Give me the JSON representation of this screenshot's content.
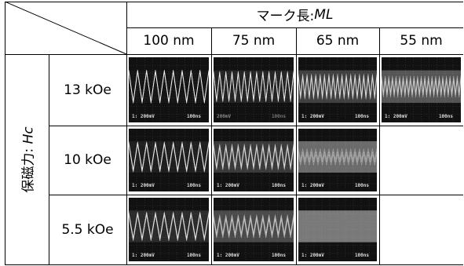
{
  "header": {
    "mark_length_label_prefix": "マーク長: ",
    "mark_length_label_var": "ML",
    "coercivity_label_prefix": "保磁力: ",
    "coercivity_label_var": "Hc"
  },
  "columns": [
    "100 nm",
    "75 nm",
    "65 nm",
    "55 nm"
  ],
  "rows": [
    "13 kOe",
    "10 kOe",
    "5.5 kOe"
  ],
  "scope_labels": {
    "volt": "200mV",
    "volt_prefixed": "1: 200mV",
    "time": "100ns"
  },
  "cells": [
    [
      {
        "present": true,
        "cycles": 9,
        "quality": 0.95,
        "label_style": "left-bright"
      },
      {
        "present": true,
        "cycles": 13,
        "quality": 0.82,
        "label_style": "faint"
      },
      {
        "present": true,
        "cycles": 18,
        "quality": 0.55,
        "label_style": "normal"
      },
      {
        "present": true,
        "cycles": 22,
        "quality": 0.35,
        "label_style": "normal"
      }
    ],
    [
      {
        "present": true,
        "cycles": 9,
        "quality": 0.85,
        "label_style": "normal"
      },
      {
        "present": true,
        "cycles": 13,
        "quality": 0.6,
        "label_style": "normal"
      },
      {
        "present": true,
        "cycles": 18,
        "quality": 0.12,
        "label_style": "normal"
      },
      {
        "present": false
      }
    ],
    [
      {
        "present": true,
        "cycles": 9,
        "quality": 0.75,
        "label_style": "normal"
      },
      {
        "present": true,
        "cycles": 13,
        "quality": 0.45,
        "label_style": "normal"
      },
      {
        "present": true,
        "cycles": 18,
        "quality": 0.0,
        "label_style": "normal"
      },
      {
        "present": false
      }
    ]
  ]
}
